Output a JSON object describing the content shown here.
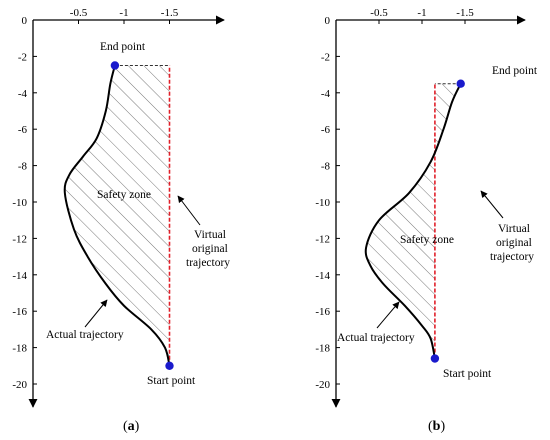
{
  "chart_data": [
    {
      "type": "line",
      "panel_label": "(a)",
      "x_ticks": [
        -0.5,
        -1,
        -1.5
      ],
      "y_ticks": [
        0,
        -2,
        -4,
        -6,
        -8,
        -10,
        -12,
        -14,
        -16,
        -18,
        -20
      ],
      "xlim": [
        0,
        -1.7
      ],
      "ylim": [
        0,
        -21
      ],
      "grid": false,
      "series": [
        {
          "name": "Actual trajectory",
          "color": "#000000",
          "x": [
            -1.5,
            -1.45,
            -1.3,
            -1.0,
            -0.8,
            -0.6,
            -0.45,
            -0.35,
            -0.4,
            -0.55,
            -0.7,
            -0.8,
            -0.85,
            -0.9
          ],
          "y": [
            -19.0,
            -18.0,
            -17.0,
            -15.7,
            -14.5,
            -13.0,
            -11.5,
            -9.5,
            -8.5,
            -7.5,
            -6.5,
            -5.0,
            -3.5,
            -2.5
          ]
        },
        {
          "name": "Virtual original trajectory",
          "color": "#e0202a",
          "x": [
            -1.5,
            -1.5
          ],
          "y": [
            -19.0,
            -2.5
          ]
        }
      ],
      "points": [
        {
          "label": "End point",
          "x": -0.9,
          "y": -2.5
        },
        {
          "label": "Start point",
          "x": -1.5,
          "y": -19.0
        }
      ],
      "annotations": [
        "End point",
        "Safety zone",
        "Virtual",
        "original",
        "trajectory",
        "Actual trajectory",
        "Start point"
      ]
    },
    {
      "type": "line",
      "panel_label": "(b)",
      "x_ticks": [
        -0.5,
        -1,
        -1.5
      ],
      "y_ticks": [
        0,
        -2,
        -4,
        -6,
        -8,
        -10,
        -12,
        -14,
        -16,
        -18,
        -20
      ],
      "xlim": [
        0,
        -1.7
      ],
      "ylim": [
        0,
        -21
      ],
      "grid": false,
      "series": [
        {
          "name": "Actual trajectory",
          "color": "#000000",
          "x": [
            -1.15,
            -1.1,
            -1.0,
            -0.8,
            -0.55,
            -0.4,
            -0.35,
            -0.5,
            -0.85,
            -1.1,
            -1.25,
            -1.35,
            -1.45
          ],
          "y": [
            -18.6,
            -17.5,
            -16.8,
            -15.7,
            -14.5,
            -13.5,
            -12.5,
            -11.0,
            -9.5,
            -7.8,
            -6.0,
            -4.5,
            -3.5
          ]
        },
        {
          "name": "Virtual original trajectory",
          "color": "#e0202a",
          "x": [
            -1.15,
            -1.15
          ],
          "y": [
            -18.6,
            -3.5
          ]
        }
      ],
      "points": [
        {
          "label": "End point",
          "x": -1.45,
          "y": -3.5
        },
        {
          "label": "Start point",
          "x": -1.15,
          "y": -18.6
        }
      ],
      "annotations": [
        "End point",
        "Safety zone",
        "Virtual",
        "original",
        "trajectory",
        "Actual trajectory",
        "Start point"
      ]
    }
  ],
  "labels": {
    "a": {
      "panel": "(a)",
      "end_point": "End point",
      "start_point": "Start point",
      "safety_zone": "Safety zone",
      "virtual_1": "Virtual",
      "virtual_2": "original",
      "virtual_3": "trajectory",
      "actual": "Actual trajectory"
    },
    "b": {
      "panel": "(b)",
      "end_point": "End point",
      "start_point": "Start point",
      "safety_zone": "Safety zone",
      "virtual_1": "Virtual",
      "virtual_2": "original",
      "virtual_3": "trajectory",
      "actual": "Actual trajectory"
    }
  }
}
